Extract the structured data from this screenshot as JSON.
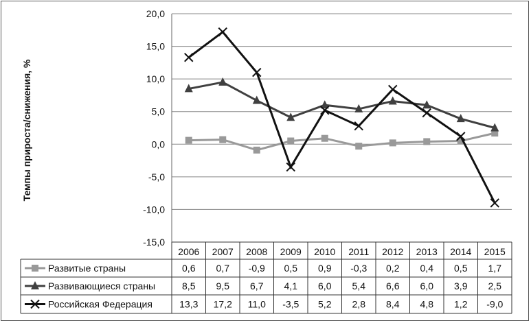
{
  "chart_data": {
    "type": "line",
    "title": "",
    "xlabel": "",
    "ylabel": "Темпы прироста/снижения, %",
    "ylim": [
      -15,
      20
    ],
    "yticks": [
      "20,0",
      "15,0",
      "10,0",
      "5,0",
      "0,0",
      "-5,0",
      "-10,0",
      "-15,0"
    ],
    "ytick_values": [
      20,
      15,
      10,
      5,
      0,
      -5,
      -10,
      -15
    ],
    "grid": true,
    "legend": "data-table-bottom",
    "categories": [
      "2006",
      "2007",
      "2008",
      "2009",
      "2010",
      "2011",
      "2012",
      "2013",
      "2014",
      "2015"
    ],
    "series": [
      {
        "name": "Развитые страны",
        "marker": "square",
        "color": "#999999",
        "values": [
          0.6,
          0.7,
          -0.9,
          0.5,
          0.9,
          -0.3,
          0.2,
          0.4,
          0.5,
          1.7
        ],
        "labels": [
          "0,6",
          "0,7",
          "-0,9",
          "0,5",
          "0,9",
          "-0,3",
          "0,2",
          "0,4",
          "0,5",
          "1,7"
        ]
      },
      {
        "name": "Развивающиеся страны",
        "marker": "triangle",
        "color": "#404040",
        "values": [
          8.5,
          9.5,
          6.7,
          4.1,
          6.0,
          5.4,
          6.6,
          6.0,
          3.9,
          2.5
        ],
        "labels": [
          "8,5",
          "9,5",
          "6,7",
          "4,1",
          "6,0",
          "5,4",
          "6,6",
          "6,0",
          "3,9",
          "2,5"
        ]
      },
      {
        "name": "Российская Федерация",
        "marker": "x",
        "color": "#111111",
        "values": [
          13.3,
          17.2,
          11.0,
          -3.5,
          5.2,
          2.8,
          8.4,
          4.8,
          1.2,
          -9.0
        ],
        "labels": [
          "13,3",
          "17,2",
          "11,0",
          "-3,5",
          "5,2",
          "2,8",
          "8,4",
          "4,8",
          "1,2",
          "-9,0"
        ]
      }
    ]
  }
}
